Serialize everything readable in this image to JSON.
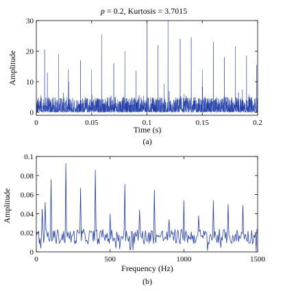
{
  "colors": {
    "series": "#1f3ba8",
    "axis": "#000000",
    "background": "#ffffff"
  },
  "chart_data": [
    {
      "type": "line",
      "title_italic": "p",
      "title_rest": " = 0.2, Kurtosis = 3.7015",
      "xlabel": "Time (s)",
      "ylabel": "Amplitude",
      "caption": "(a)",
      "xlim": [
        0,
        0.2
      ],
      "ylim": [
        -1,
        30
      ],
      "xticks": [
        0,
        0.05,
        0.1,
        0.15,
        0.2
      ],
      "xticklabels": [
        "0",
        "0.05",
        "0.1",
        "0.15",
        "0.2"
      ],
      "yticks": [
        0,
        10,
        20,
        30
      ],
      "yticklabels": [
        "0",
        "10",
        "20",
        "30"
      ],
      "grid": false,
      "samples": 2000,
      "noise_max": 5,
      "spikes": [
        {
          "x": 0.0075,
          "y": 20.5
        },
        {
          "x": 0.01,
          "y": 13.0
        },
        {
          "x": 0.02,
          "y": 19.0
        },
        {
          "x": 0.029,
          "y": 14.0
        },
        {
          "x": 0.04,
          "y": 17.0
        },
        {
          "x": 0.05,
          "y": 14.0
        },
        {
          "x": 0.059,
          "y": 25.5
        },
        {
          "x": 0.07,
          "y": 16.0
        },
        {
          "x": 0.08,
          "y": 20.0
        },
        {
          "x": 0.09,
          "y": 13.5
        },
        {
          "x": 0.1,
          "y": 30.0
        },
        {
          "x": 0.11,
          "y": 22.0
        },
        {
          "x": 0.119,
          "y": 30.0
        },
        {
          "x": 0.13,
          "y": 24.0
        },
        {
          "x": 0.14,
          "y": 24.5
        },
        {
          "x": 0.15,
          "y": 14.0
        },
        {
          "x": 0.16,
          "y": 23.0
        },
        {
          "x": 0.17,
          "y": 18.0
        },
        {
          "x": 0.18,
          "y": 21.5
        },
        {
          "x": 0.19,
          "y": 18.5
        },
        {
          "x": 0.199,
          "y": 15.5
        }
      ]
    },
    {
      "type": "line",
      "xlabel": "Frequency (Hz)",
      "ylabel": "Amplitude",
      "caption": "(b)",
      "xlim": [
        0,
        1500
      ],
      "ylim": [
        0,
        0.1
      ],
      "xticks": [
        0,
        500,
        1000,
        1500
      ],
      "xticklabels": [
        "0",
        "500",
        "1000",
        "1500"
      ],
      "yticks": [
        0,
        0.02,
        0.04,
        0.06,
        0.08,
        0.1
      ],
      "yticklabels": [
        "0",
        "0.02",
        "0.04",
        "0.06",
        "0.08",
        "0.1"
      ],
      "grid": false,
      "samples": 300,
      "baseline": 0.016,
      "noise_amp": 0.008,
      "peaks": [
        {
          "x": 40,
          "y": 0.045
        },
        {
          "x": 60,
          "y": 0.052
        },
        {
          "x": 100,
          "y": 0.076
        },
        {
          "x": 200,
          "y": 0.093
        },
        {
          "x": 300,
          "y": 0.067
        },
        {
          "x": 400,
          "y": 0.086
        },
        {
          "x": 500,
          "y": 0.04
        },
        {
          "x": 600,
          "y": 0.071
        },
        {
          "x": 700,
          "y": 0.044
        },
        {
          "x": 800,
          "y": 0.065
        },
        {
          "x": 900,
          "y": 0.034
        },
        {
          "x": 1000,
          "y": 0.054
        },
        {
          "x": 1100,
          "y": 0.038
        },
        {
          "x": 1200,
          "y": 0.054
        },
        {
          "x": 1300,
          "y": 0.05
        },
        {
          "x": 1400,
          "y": 0.049
        }
      ]
    }
  ]
}
